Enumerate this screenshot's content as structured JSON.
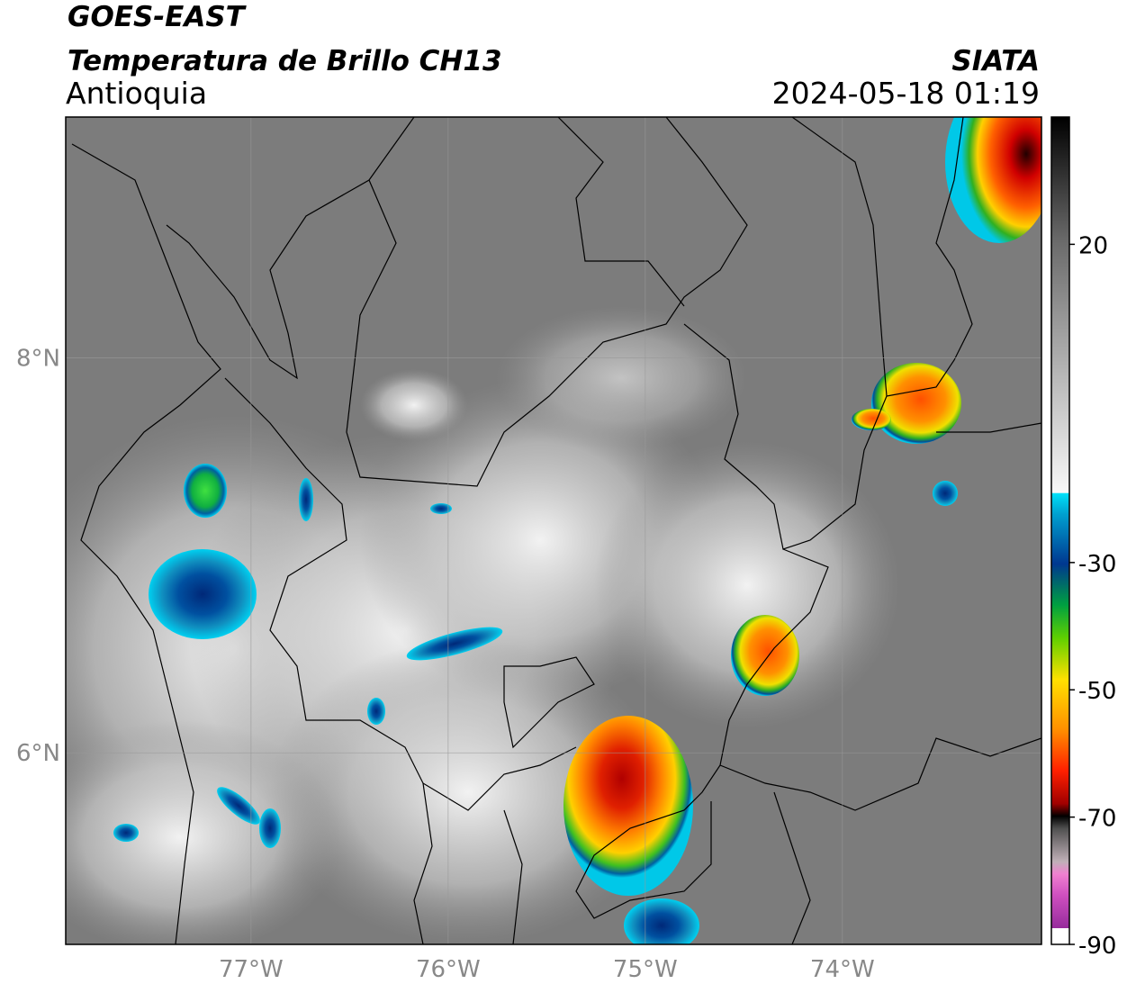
{
  "header": {
    "satellite": "GOES-EAST",
    "product": "Temperatura de Brillo CH13",
    "region": "Antioquia",
    "source": "SIATA",
    "datetime": "2024-05-18 01:19"
  },
  "map": {
    "lonlim": [
      -77.94,
      -72.99
    ],
    "latlim": [
      5.03,
      9.22
    ],
    "lat_ticks": [
      {
        "value": 8,
        "label": "8°N"
      },
      {
        "value": 6,
        "label": "6°N"
      }
    ],
    "lon_ticks": [
      {
        "value": -77,
        "label": "77°W"
      },
      {
        "value": -76,
        "label": "76°W"
      },
      {
        "value": -75,
        "label": "75°W"
      },
      {
        "value": -74,
        "label": "74°W"
      }
    ]
  },
  "colorbar": {
    "lim": [
      -90,
      40
    ],
    "ticks": [
      20,
      -30,
      -50,
      -70,
      -90
    ]
  }
}
